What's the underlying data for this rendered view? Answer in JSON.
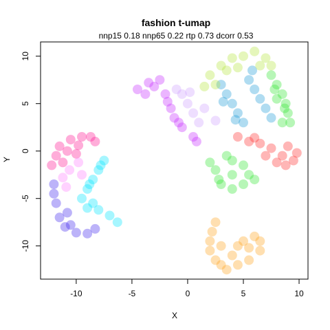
{
  "chart_data": {
    "type": "scatter",
    "title": "fashion t-umap",
    "subtitle": "nnp15 0.18 nnp65 0.22 rtp 0.73 dcorr 0.53",
    "xlabel": "X",
    "ylabel": "Y",
    "xlim": [
      -13.2,
      10.8
    ],
    "ylim": [
      -13.5,
      11.5
    ],
    "xticks": [
      -10,
      -5,
      0,
      5,
      10
    ],
    "yticks": [
      -10,
      -5,
      0,
      5,
      10
    ],
    "xtick_labels": [
      "-10",
      "-5",
      "0",
      "5",
      "10"
    ],
    "ytick_labels": [
      "-10",
      "-5",
      "0",
      "5",
      "10"
    ],
    "grid": false,
    "legend": "none",
    "series": [
      {
        "color": "#ff1493",
        "points": [
          [
            -11.5,
            0.5
          ],
          [
            -10.5,
            1.2
          ],
          [
            -9.5,
            1.5
          ],
          [
            -8.7,
            1.5
          ],
          [
            -11.8,
            -0.5
          ],
          [
            -12.2,
            -1.5
          ],
          [
            -10.8,
            0.0
          ],
          [
            -9.8,
            0.6
          ],
          [
            -8.3,
            1.0
          ],
          [
            -11.2,
            -1.2
          ],
          [
            -10.0,
            -0.3
          ]
        ]
      },
      {
        "color": "#00e5ff",
        "points": [
          [
            -7.5,
            -1.0
          ],
          [
            -8.0,
            -2.0
          ],
          [
            -8.5,
            -3.0
          ],
          [
            -9.0,
            -4.0
          ],
          [
            -9.5,
            -5.0
          ],
          [
            -9.0,
            -6.0
          ],
          [
            -8.0,
            -6.2
          ],
          [
            -7.0,
            -6.8
          ],
          [
            -6.3,
            -7.5
          ],
          [
            -7.8,
            -1.5
          ],
          [
            -8.8,
            -3.5
          ],
          [
            -8.5,
            -5.5
          ]
        ]
      },
      {
        "color": "#3f25ee",
        "points": [
          [
            -12.0,
            -3.5
          ],
          [
            -11.8,
            -5.5
          ],
          [
            -11.5,
            -7.0
          ],
          [
            -11.0,
            -8.0
          ],
          [
            -10.0,
            -8.6
          ],
          [
            -9.0,
            -8.7
          ],
          [
            -8.3,
            -8.2
          ],
          [
            -12.0,
            -4.5
          ],
          [
            -10.8,
            -6.5
          ],
          [
            -10.5,
            -7.8
          ]
        ]
      },
      {
        "color": "#ff7fff",
        "points": [
          [
            -11.2,
            -2.8
          ],
          [
            -10.6,
            -2.0
          ],
          [
            -9.8,
            -1.2
          ],
          [
            -10.9,
            -3.8
          ],
          [
            -9.5,
            -2.5
          ]
        ]
      },
      {
        "color": "#c62cff",
        "points": [
          [
            -4.5,
            6.5
          ],
          [
            -3.5,
            7.2
          ],
          [
            -2.5,
            7.5
          ],
          [
            -2.0,
            6.0
          ],
          [
            -1.5,
            4.5
          ],
          [
            -1.2,
            3.5
          ],
          [
            -0.5,
            2.5
          ],
          [
            0.5,
            1.5
          ],
          [
            -3.0,
            6.8
          ],
          [
            -1.8,
            5.2
          ],
          [
            -0.8,
            3.0
          ],
          [
            0.8,
            1.0
          ],
          [
            -3.8,
            6.0
          ]
        ]
      },
      {
        "color": "#cfa0ff",
        "points": [
          [
            -0.5,
            6.0
          ],
          [
            0.0,
            5.0
          ],
          [
            0.5,
            4.0
          ],
          [
            1.0,
            3.0
          ],
          [
            -1.0,
            6.5
          ],
          [
            0.2,
            6.2
          ],
          [
            1.5,
            4.5
          ],
          [
            2.5,
            3.2
          ]
        ]
      },
      {
        "color": "#1e9bd7",
        "points": [
          [
            3.0,
            7.0
          ],
          [
            3.5,
            6.0
          ],
          [
            4.0,
            5.0
          ],
          [
            4.5,
            4.0
          ],
          [
            5.0,
            3.0
          ],
          [
            5.5,
            7.5
          ],
          [
            6.0,
            6.5
          ],
          [
            6.5,
            5.5
          ],
          [
            7.0,
            4.5
          ],
          [
            7.5,
            3.5
          ],
          [
            5.8,
            8.5
          ],
          [
            3.2,
            5.2
          ],
          [
            4.3,
            3.3
          ]
        ]
      },
      {
        "color": "#b4e63c",
        "points": [
          [
            2.0,
            8.0
          ],
          [
            3.0,
            9.0
          ],
          [
            4.0,
            9.8
          ],
          [
            5.0,
            10.0
          ],
          [
            6.0,
            10.5
          ],
          [
            7.0,
            9.8
          ],
          [
            7.5,
            9.0
          ],
          [
            2.5,
            7.0
          ],
          [
            3.5,
            8.5
          ],
          [
            4.5,
            8.8
          ],
          [
            6.5,
            9.0
          ],
          [
            1.5,
            6.8
          ]
        ]
      },
      {
        "color": "#32e632",
        "points": [
          [
            7.5,
            8.0
          ],
          [
            8.0,
            7.0
          ],
          [
            8.5,
            6.0
          ],
          [
            8.8,
            5.0
          ],
          [
            9.0,
            4.0
          ],
          [
            8.5,
            3.0
          ],
          [
            9.2,
            3.0
          ],
          [
            8.0,
            5.5
          ],
          [
            7.8,
            6.5
          ],
          [
            8.7,
            4.5
          ],
          [
            4.0,
            -1.0
          ],
          [
            5.0,
            -1.5
          ],
          [
            4.0,
            -2.5
          ],
          [
            3.0,
            -3.5
          ],
          [
            4.0,
            -4.0
          ],
          [
            5.0,
            -3.5
          ],
          [
            6.0,
            -3.0
          ],
          [
            2.5,
            -2.0
          ],
          [
            2.0,
            -1.2
          ],
          [
            3.5,
            -0.5
          ],
          [
            5.5,
            -2.5
          ],
          [
            2.8,
            -3.0
          ]
        ]
      },
      {
        "color": "#ff2d2d",
        "points": [
          [
            4.5,
            1.5
          ],
          [
            5.5,
            1.0
          ],
          [
            6.5,
            0.8
          ],
          [
            7.5,
            0.3
          ],
          [
            8.5,
            -0.5
          ],
          [
            9.5,
            -1.0
          ],
          [
            9.0,
            0.5
          ],
          [
            8.0,
            -1.2
          ],
          [
            7.0,
            -0.5
          ],
          [
            9.8,
            -0.2
          ],
          [
            6.0,
            1.4
          ],
          [
            8.8,
            -1.5
          ]
        ]
      },
      {
        "color": "#ffa21e",
        "points": [
          [
            2.5,
            -7.5
          ],
          [
            2.2,
            -8.5
          ],
          [
            2.0,
            -9.5
          ],
          [
            2.0,
            -10.5
          ],
          [
            2.5,
            -11.5
          ],
          [
            3.0,
            -12.0
          ],
          [
            3.5,
            -12.5
          ],
          [
            4.0,
            -11.0
          ],
          [
            4.5,
            -10.0
          ],
          [
            5.0,
            -9.5
          ],
          [
            6.0,
            -9.0
          ],
          [
            6.5,
            -9.5
          ],
          [
            6.5,
            -10.5
          ],
          [
            5.5,
            -11.5
          ],
          [
            4.5,
            -12.0
          ],
          [
            3.0,
            -10.0
          ],
          [
            5.5,
            -10.2
          ]
        ]
      }
    ]
  }
}
